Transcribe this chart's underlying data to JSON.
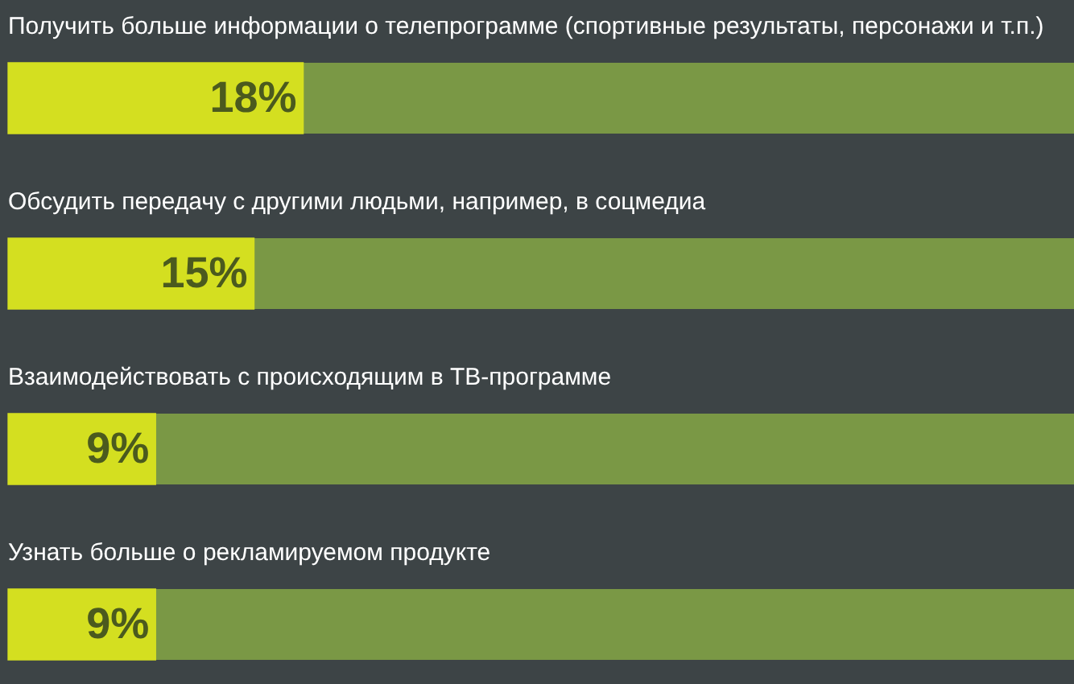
{
  "chart_data": {
    "type": "bar",
    "orientation": "horizontal",
    "categories": [
      "Получить больше информации о телепрограмме (спортивные результаты, персонажи и т.п.)",
      "Обсудить передачу с другими людьми, например, в соцмедиа",
      "Взаимодействовать с происходящим в ТВ-программе",
      "Узнать больше о рекламируемом продукте"
    ],
    "values": [
      18,
      15,
      9,
      9
    ],
    "value_labels": [
      "18%",
      "15%",
      "9%",
      "9%"
    ],
    "color": "#d4df20",
    "xlim": [
      0,
      65
    ],
    "tick_labels": false,
    "grid": "y"
  }
}
